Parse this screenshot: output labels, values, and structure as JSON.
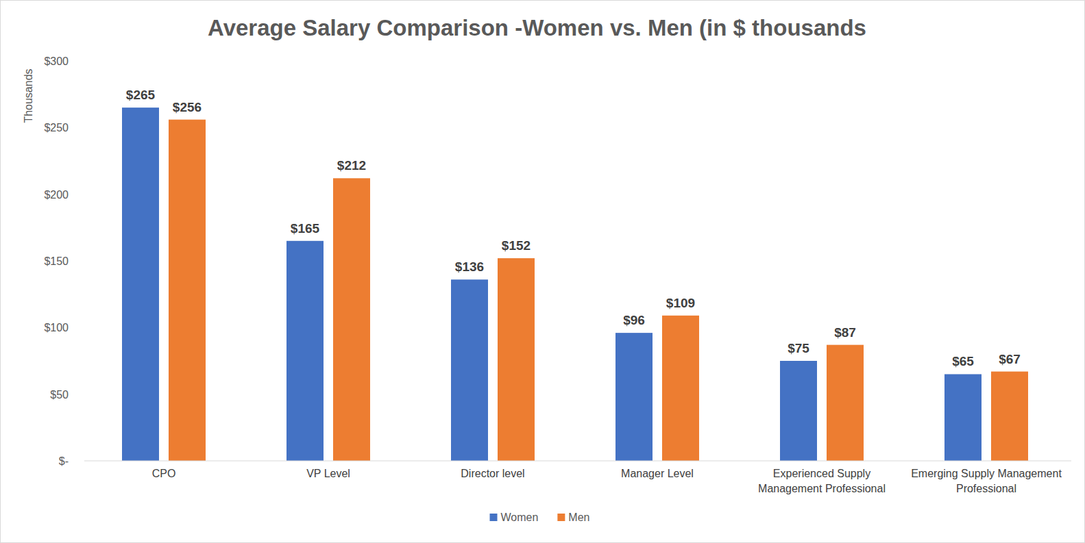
{
  "chart_data": {
    "type": "bar",
    "title": "Average Salary Comparison -Women vs. Men (in $ thousands",
    "y_label": "Thousands",
    "categories": [
      "CPO",
      "VP Level",
      "Director level",
      "Manager Level",
      "Experienced Supply Management Professional",
      "Emerging Supply Management Professional"
    ],
    "series": [
      {
        "name": "Women",
        "color": "#4472c4",
        "values": [
          265,
          165,
          136,
          96,
          75,
          65
        ],
        "value_labels": [
          "$265",
          "$165",
          "$136",
          "$96",
          "$75",
          "$65"
        ]
      },
      {
        "name": "Men",
        "color": "#ed7d31",
        "values": [
          256,
          212,
          152,
          109,
          87,
          67
        ],
        "value_labels": [
          "$256",
          "$212",
          "$152",
          "$109",
          "$87",
          "$67"
        ]
      }
    ],
    "ylim": [
      0,
      300
    ],
    "yticks": [
      {
        "value": 0,
        "label": "$-"
      },
      {
        "value": 50,
        "label": "$50"
      },
      {
        "value": 100,
        "label": "$100"
      },
      {
        "value": 150,
        "label": "$150"
      },
      {
        "value": 200,
        "label": "$200"
      },
      {
        "value": 250,
        "label": "$250"
      },
      {
        "value": 300,
        "label": "$300"
      }
    ],
    "grid": false,
    "legend": "bottom",
    "data_labels": true
  }
}
